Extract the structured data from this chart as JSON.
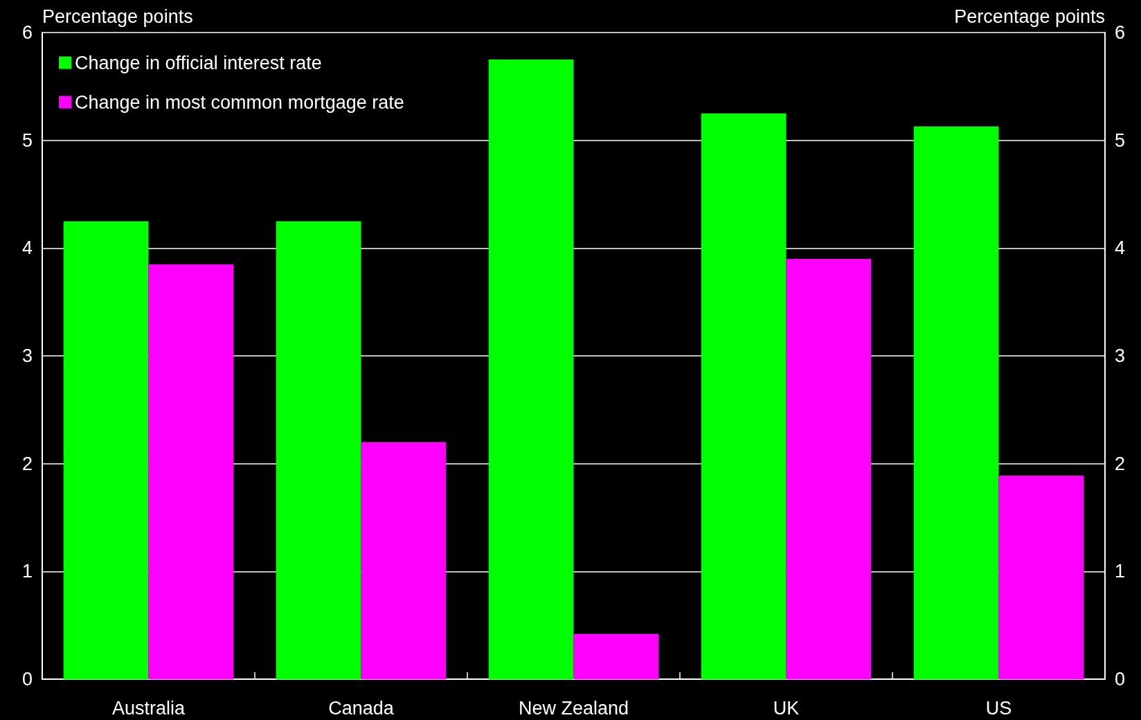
{
  "chart_data": {
    "type": "bar",
    "ylabel": "Percentage points",
    "y2label": "Percentage points",
    "categories": [
      "Australia",
      "Canada",
      "New Zealand",
      "UK",
      "US"
    ],
    "series": [
      {
        "name": "Change in official interest rate",
        "color": "#00ff00",
        "values": [
          4.25,
          4.25,
          5.75,
          5.25,
          5.13
        ]
      },
      {
        "name": "Change in most common mortgage rate",
        "color": "#ff00ff",
        "values": [
          3.85,
          2.2,
          0.42,
          3.9,
          1.89
        ]
      }
    ],
    "ylim": [
      0,
      6
    ],
    "yticks": [
      0,
      1,
      2,
      3,
      4,
      5,
      6
    ],
    "y2lim": [
      0,
      6
    ],
    "y2ticks": [
      0,
      1,
      2,
      3,
      4,
      5,
      6
    ],
    "grid": "y",
    "legend": "top left"
  }
}
